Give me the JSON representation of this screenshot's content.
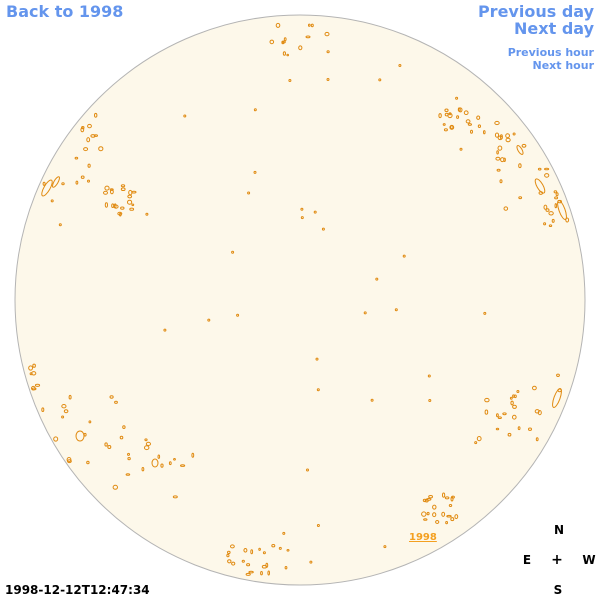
{
  "nav": {
    "back_label": "Back to 1998",
    "previous_day_label": "Previous day",
    "next_day_label": "Next day",
    "previous_hour_label": "Previous hour",
    "next_hour_label": "Next hour"
  },
  "compass": {
    "north": "N",
    "east": "E",
    "center": "+",
    "west": "W",
    "south": "S"
  },
  "timestamp": "1998-12-12T12:47:34",
  "map_label": "1998",
  "colors": {
    "link": "#6495ed",
    "disk_fill": "#fdf8ea",
    "disk_edge": "#b4b4b4",
    "contour": "#e08a10",
    "year_label": "#f4a020"
  }
}
